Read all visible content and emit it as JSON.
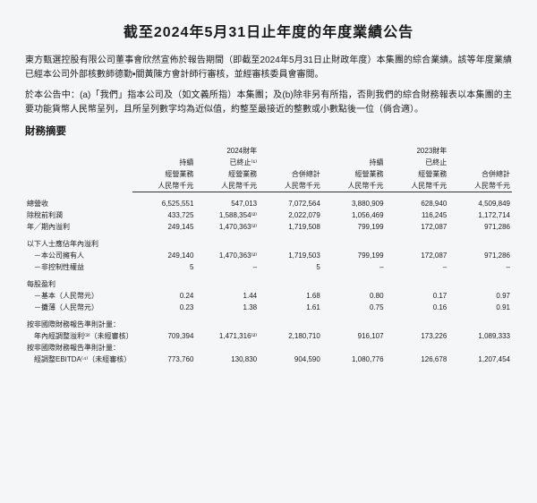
{
  "title": "截至2024年5月31日止年度的年度業績公告",
  "para1": "東方甄選控股有限公司董事會欣然宣佈於報告期間（即截至2024年5月31日止財政年度）本集團的綜合業績。該等年度業績已經本公司外部核數師德勤•關黃陳方會計師行審核，並經審核委員會審閱。",
  "para2": "於本公告中：(a)「我們」指本公司及（如文義所指）本集團；及(b)除非另有所指，否則我們的綜合財務報表以本集團的主要功能貨幣人民幣呈列，且所呈列數字均為近似值，約整至最接近的整數或小數點後一位（倘合適）。",
  "section_head": "財務摘要",
  "col_headers": {
    "fy2024": "2024財年",
    "fy2023": "2023財年",
    "continuing": "持續",
    "continuing2": "經營業務",
    "discontinued": "已終止⁽¹⁾",
    "discontinued_plain": "已終止",
    "discontinued2": "經營業務",
    "subtotal": "合併總計",
    "unit": "人民幣千元"
  },
  "rows": {
    "revenue": {
      "label": "總營收",
      "v": [
        "6,525,551",
        "547,013",
        "7,072,564",
        "3,880,909",
        "628,940",
        "4,509,849"
      ]
    },
    "pbt": {
      "label": "除稅前利潤",
      "v": [
        "433,725",
        "1,588,354⁽²⁾",
        "2,022,079",
        "1,056,469",
        "116,245",
        "1,172,714"
      ]
    },
    "profit": {
      "label": "年╱期內溢利",
      "v": [
        "249,145",
        "1,470,363⁽²⁾",
        "1,719,508",
        "799,199",
        "172,087",
        "971,286"
      ]
    },
    "attr_head": {
      "label": "以下人士應佔年內溢利"
    },
    "owners": {
      "label": "－本公司擁有人",
      "v": [
        "249,140",
        "1,470,363⁽²⁾",
        "1,719,503",
        "799,199",
        "172,087",
        "971,286"
      ]
    },
    "nci": {
      "label": "－非控制性權益",
      "v": [
        "5",
        "–",
        "5",
        "–",
        "–",
        "–"
      ]
    },
    "eps_head": {
      "label": "每股盈利"
    },
    "eps_basic": {
      "label": "－基本（人民幣元）",
      "v": [
        "0.24",
        "1.44",
        "1.68",
        "0.80",
        "0.17",
        "0.97"
      ]
    },
    "eps_diluted": {
      "label": "－攤薄（人民幣元）",
      "v": [
        "0.23",
        "1.38",
        "1.61",
        "0.75",
        "0.16",
        "0.91"
      ]
    },
    "nonifrs_head": {
      "label": "按非國際財務報告準則計量："
    },
    "adj_profit": {
      "label": "年內經調整溢利⁽³⁾（未經審核）",
      "v": [
        "709,394",
        "1,471,316⁽²⁾",
        "2,180,710",
        "916,107",
        "173,226",
        "1,089,333"
      ]
    },
    "nonifrs_head2": {
      "label": "按非國際財務報告準則計量："
    },
    "adj_ebitda": {
      "label": "經調整EBITDA⁽⁴⁾（未經審核）",
      "v": [
        "773,760",
        "130,830",
        "904,590",
        "1,080,776",
        "126,678",
        "1,207,454"
      ]
    }
  }
}
